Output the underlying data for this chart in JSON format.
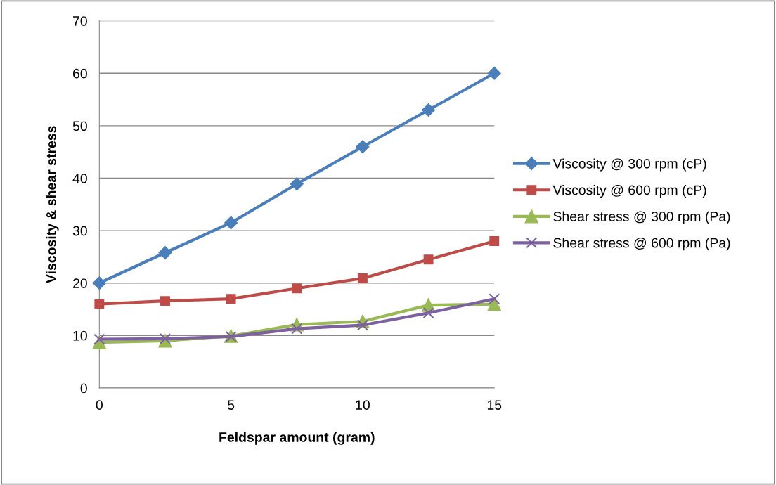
{
  "chart_data": {
    "type": "line",
    "xlabel": "Feldspar amount (gram)",
    "ylabel": "Viscosity & shear stress",
    "x": [
      0,
      2.5,
      5,
      7.5,
      10,
      12.5,
      15
    ],
    "xlim": [
      0,
      15
    ],
    "xticks": [
      0,
      5,
      10,
      15
    ],
    "ylim": [
      0,
      70
    ],
    "yticks": [
      0,
      10,
      20,
      30,
      40,
      50,
      60,
      70
    ],
    "grid": "y",
    "legend": "right",
    "line_style": "solid",
    "series": [
      {
        "name": "Viscosity @ 300 rpm (cP)",
        "color": "#4a7ebb",
        "marker": "diamond",
        "values": [
          20,
          25.8,
          31.5,
          38.9,
          46,
          53,
          60
        ]
      },
      {
        "name": "Viscosity @ 600 rpm (cP)",
        "color": "#be4b48",
        "marker": "square",
        "values": [
          16,
          16.6,
          17,
          19,
          20.9,
          24.5,
          28
        ]
      },
      {
        "name": "Shear stress @ 300 rpm (Pa)",
        "color": "#98b954",
        "marker": "triangle",
        "values": [
          8.7,
          9,
          9.9,
          12.1,
          12.7,
          15.8,
          16
        ]
      },
      {
        "name": "Shear stress @ 600 rpm (Pa)",
        "color": "#7d60a0",
        "marker": "cross",
        "values": [
          9.3,
          9.4,
          9.8,
          11.3,
          12,
          14.3,
          17
        ]
      }
    ]
  }
}
